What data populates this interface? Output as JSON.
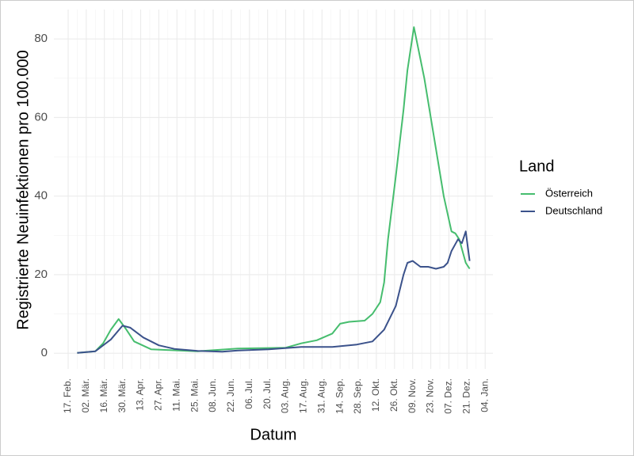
{
  "chart_data": {
    "type": "line",
    "y_label": "Registrierte Neuinfektionen pro 100.000",
    "x_label": "Datum",
    "legend_title": "Land",
    "legend_position": "right",
    "grid": true,
    "xlim": [
      -11,
      328
    ],
    "ylim": [
      -4,
      87.5
    ],
    "yticks": [
      0,
      20,
      40,
      60,
      80
    ],
    "xticks": [
      {
        "value": 0,
        "label": "17. Feb."
      },
      {
        "value": 14,
        "label": "02. Mär."
      },
      {
        "value": 28,
        "label": "16. Mär."
      },
      {
        "value": 42,
        "label": "30. Mär."
      },
      {
        "value": 56,
        "label": "13. Apr."
      },
      {
        "value": 70,
        "label": "27. Apr."
      },
      {
        "value": 84,
        "label": "11. Mai."
      },
      {
        "value": 98,
        "label": "25. Mai."
      },
      {
        "value": 112,
        "label": "08. Jun."
      },
      {
        "value": 126,
        "label": "22. Jun."
      },
      {
        "value": 140,
        "label": "06. Jul."
      },
      {
        "value": 154,
        "label": "20. Jul."
      },
      {
        "value": 168,
        "label": "03. Aug."
      },
      {
        "value": 182,
        "label": "17. Aug."
      },
      {
        "value": 196,
        "label": "31. Aug."
      },
      {
        "value": 210,
        "label": "14. Sep."
      },
      {
        "value": 224,
        "label": "28. Sep."
      },
      {
        "value": 238,
        "label": "12. Okt."
      },
      {
        "value": 252,
        "label": "26. Okt."
      },
      {
        "value": 266,
        "label": "09. Nov."
      },
      {
        "value": 280,
        "label": "23. Nov."
      },
      {
        "value": 294,
        "label": "07. Dez."
      },
      {
        "value": 308,
        "label": "21. Dez."
      },
      {
        "value": 322,
        "label": "04. Jan."
      }
    ],
    "series": [
      {
        "name": "Österreich",
        "color": "#46bd6e",
        "x": [
          7,
          21,
          27,
          33,
          39,
          45,
          51,
          64,
          100,
          131,
          168,
          180,
          192,
          204,
          210,
          217,
          229,
          235,
          241,
          244,
          247,
          253,
          259,
          262,
          267,
          275,
          281,
          284,
          290,
          296,
          299,
          302,
          307,
          310
        ],
        "values": [
          0.1,
          0.5,
          2.5,
          6,
          8.7,
          6,
          3,
          1,
          0.5,
          1.2,
          1.4,
          2.5,
          3.3,
          5,
          7.5,
          8,
          8.3,
          10,
          13,
          18,
          29,
          45,
          62,
          72,
          83,
          70,
          58,
          52,
          40,
          31,
          30.5,
          29,
          23,
          21.5
        ]
      },
      {
        "name": "Deutschland",
        "color": "#3b528b",
        "x": [
          7,
          21,
          33,
          42,
          48,
          58,
          70,
          82,
          100,
          119,
          131,
          155,
          180,
          204,
          223,
          235,
          244,
          253,
          259,
          262,
          266,
          272,
          278,
          284,
          290,
          293,
          296,
          301,
          304,
          307,
          310
        ],
        "values": [
          0.1,
          0.5,
          3.5,
          7,
          6.5,
          4,
          2,
          1.1,
          0.6,
          0.4,
          0.7,
          1,
          1.6,
          1.6,
          2.2,
          3,
          6,
          12,
          20,
          23,
          23.5,
          22,
          22,
          21.5,
          22,
          23,
          26,
          29,
          28,
          31,
          23.5
        ]
      }
    ]
  }
}
